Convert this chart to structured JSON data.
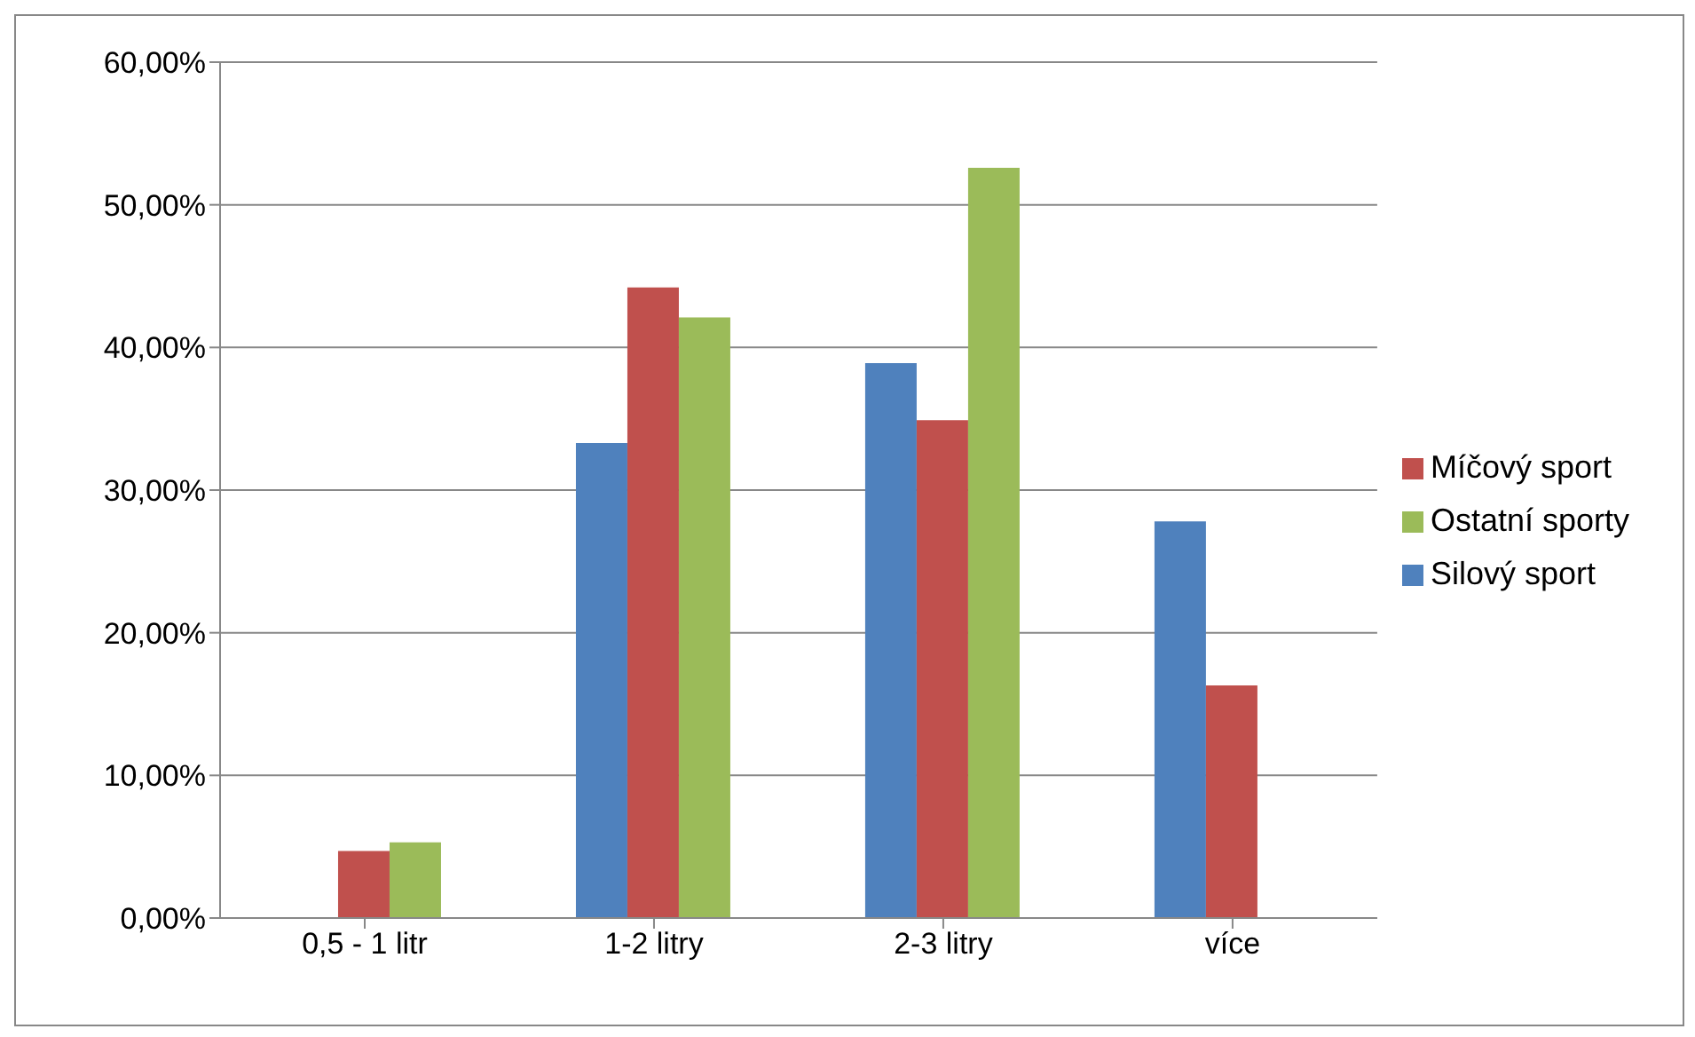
{
  "chart_data": {
    "type": "bar",
    "categories": [
      "0,5 - 1 litr",
      "1-2 litry",
      "2-3 litry",
      "více"
    ],
    "series": [
      {
        "name": "Silový sport",
        "color": "#4f81bd",
        "values": [
          0,
          33.3,
          38.9,
          27.8
        ]
      },
      {
        "name": "Míčový sport",
        "color": "#c0504d",
        "values": [
          4.7,
          44.2,
          34.9,
          16.3
        ]
      },
      {
        "name": "Ostatní sporty",
        "color": "#9bbb59",
        "values": [
          5.3,
          42.1,
          52.6,
          0
        ]
      }
    ],
    "ylim": [
      0,
      60
    ],
    "yticks": [
      {
        "value": 0,
        "label": "0,00%"
      },
      {
        "value": 10,
        "label": "10,00%"
      },
      {
        "value": 20,
        "label": "20,00%"
      },
      {
        "value": 30,
        "label": "30,00%"
      },
      {
        "value": 40,
        "label": "40,00%"
      },
      {
        "value": 50,
        "label": "50,00%"
      },
      {
        "value": 60,
        "label": "60,00%"
      }
    ],
    "grid": "y",
    "legend": "right"
  }
}
